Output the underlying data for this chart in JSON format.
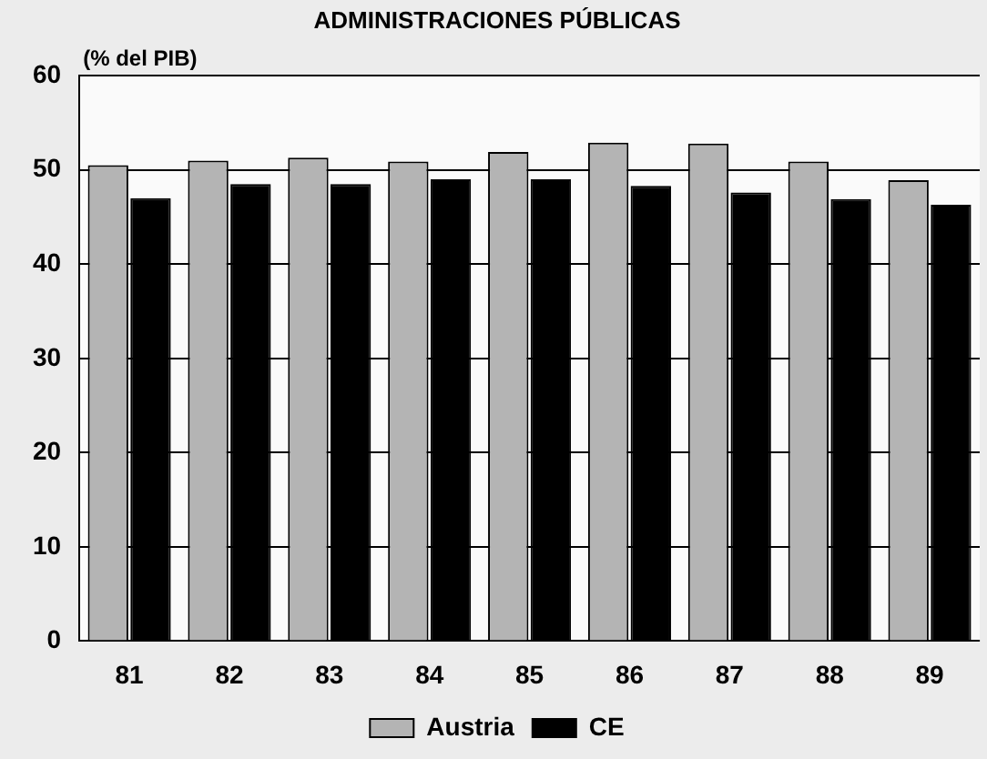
{
  "chart_data": {
    "type": "bar",
    "title": "ADMINISTRACIONES PÚBLICAS",
    "ylabel": "(% del PIB)",
    "categories": [
      "81",
      "82",
      "83",
      "84",
      "85",
      "86",
      "87",
      "88",
      "89"
    ],
    "series": [
      {
        "name": "Austria",
        "color": "#b4b4b4",
        "values": [
          50.5,
          51.0,
          51.3,
          50.9,
          51.9,
          52.9,
          52.8,
          50.9,
          48.9
        ]
      },
      {
        "name": "CE",
        "color": "#000000",
        "values": [
          47.0,
          48.5,
          48.5,
          49.0,
          49.0,
          48.3,
          47.6,
          46.9,
          46.3
        ]
      }
    ],
    "ylim": [
      0,
      60
    ],
    "yticks": [
      0,
      10,
      20,
      30,
      40,
      50,
      60
    ],
    "grid": "y",
    "legend": "bottom"
  }
}
